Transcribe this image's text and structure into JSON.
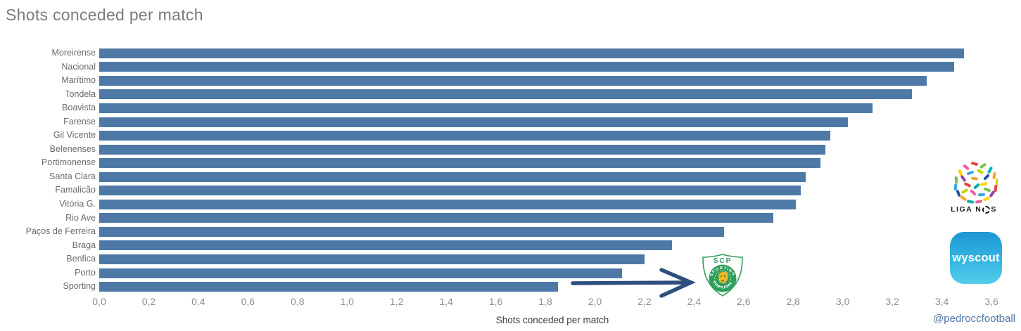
{
  "title": "Shots conceded per match",
  "attribution": "@pedroccfootball",
  "chart_data": {
    "type": "bar",
    "orientation": "horizontal",
    "title": "Shots conceded per match",
    "xlabel": "Shots conceded per match",
    "ylabel": "",
    "xlim": [
      0,
      3.6
    ],
    "grid": false,
    "bar_color": "#4e79a7",
    "categories": [
      "Moreirense",
      "Nacional",
      "Marítimo",
      "Tondela",
      "Boavista",
      "Farense",
      "Gil Vicente",
      "Belenenses",
      "Portimonense",
      "Santa Clara",
      "Famalicão",
      "Vitória G.",
      "Rio Ave",
      "Paços de Ferreira",
      "Braga",
      "Benfica",
      "Porto",
      "Sporting"
    ],
    "values": [
      3.49,
      3.45,
      3.34,
      3.28,
      3.12,
      3.02,
      2.95,
      2.93,
      2.91,
      2.85,
      2.83,
      2.81,
      2.72,
      2.52,
      2.31,
      2.2,
      2.11,
      1.85
    ],
    "x_ticks": [
      "0,0",
      "0,2",
      "0,4",
      "0,6",
      "0,8",
      "1,0",
      "1,2",
      "1,4",
      "1,6",
      "1,8",
      "2,0",
      "2,2",
      "2,4",
      "2,6",
      "2,8",
      "3,0",
      "3,2",
      "3,4",
      "3,6"
    ],
    "annotation": {
      "arrow_points_to": "Sporting",
      "arrow_color": "#2e4f7d"
    }
  },
  "logos": {
    "league_label_left": "LIGA N",
    "league_label_right": "S",
    "provider": "wyscout",
    "badge_top": "SCP",
    "badge_arc_top": "SPORTING",
    "badge_arc_bottom": "PORTUGAL"
  },
  "colors": {
    "bar": "#4e79a7",
    "title_text": "#7b7b7b",
    "axis_text": "#8e8e8e",
    "attribution_text": "#4e79a7",
    "badge_green": "#2f9e5b",
    "badge_lion_yellow": "#f2b626",
    "wyscout_blue": "#35b5e2"
  }
}
